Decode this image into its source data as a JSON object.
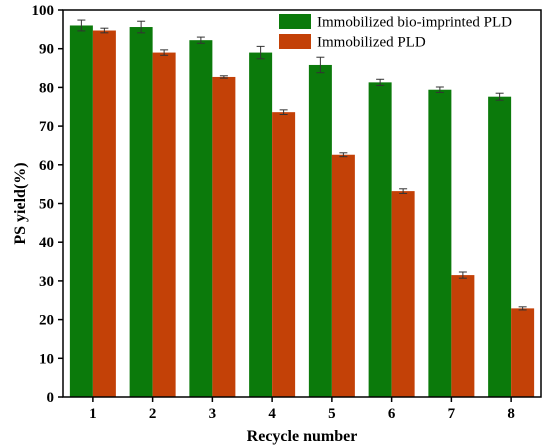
{
  "chart_data": {
    "type": "bar",
    "title": "",
    "xlabel": "Recycle number",
    "ylabel": "PS yield(%)",
    "categories": [
      "1",
      "2",
      "3",
      "4",
      "5",
      "6",
      "7",
      "8"
    ],
    "ylim": [
      0,
      100
    ],
    "yticks": [
      0,
      10,
      20,
      30,
      40,
      50,
      60,
      70,
      80,
      90,
      100
    ],
    "legend_position": "top-right",
    "error_bars": true,
    "series": [
      {
        "name": "Immobilized bio-imprinted PLD",
        "color": "#0b7a0b",
        "values": [
          96.0,
          95.6,
          92.2,
          89.0,
          85.8,
          81.3,
          79.4,
          77.6
        ],
        "errors": [
          1.4,
          1.5,
          0.8,
          1.6,
          2.0,
          0.8,
          0.7,
          0.9
        ]
      },
      {
        "name": "Immobilized PLD",
        "color": "#c34107",
        "values": [
          94.7,
          89.0,
          82.7,
          73.6,
          62.6,
          53.2,
          31.5,
          22.9
        ],
        "errors": [
          0.6,
          0.7,
          0.3,
          0.6,
          0.5,
          0.6,
          0.8,
          0.4
        ]
      }
    ]
  }
}
